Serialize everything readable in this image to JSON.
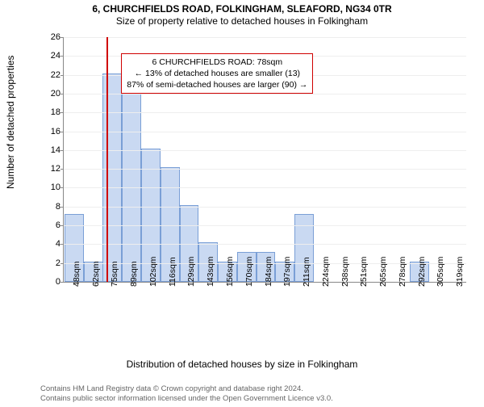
{
  "titles": {
    "line1": "6, CHURCHFIELDS ROAD, FOLKINGHAM, SLEAFORD, NG34 0TR",
    "line2": "Size of property relative to detached houses in Folkingham"
  },
  "axes": {
    "ylabel": "Number of detached properties",
    "xlabel": "Distribution of detached houses by size in Folkingham",
    "ymax": 26,
    "yticks": [
      0,
      2,
      4,
      6,
      8,
      10,
      12,
      14,
      16,
      18,
      20,
      22,
      24,
      26
    ]
  },
  "bars": {
    "categories": [
      "48sqm",
      "62sqm",
      "75sqm",
      "89sqm",
      "102sqm",
      "116sqm",
      "129sqm",
      "143sqm",
      "156sqm",
      "170sqm",
      "184sqm",
      "197sqm",
      "211sqm",
      "224sqm",
      "238sqm",
      "251sqm",
      "265sqm",
      "278sqm",
      "292sqm",
      "305sqm",
      "319sqm"
    ],
    "values": [
      7,
      2,
      22,
      20,
      14,
      12,
      8,
      4,
      2,
      3,
      3,
      2,
      7,
      0,
      0,
      0,
      0,
      0,
      2,
      0,
      0
    ],
    "fill": "#c9d9f2",
    "stroke": "#7a9fd6",
    "border_radius": 0
  },
  "marker": {
    "at_category_index": 2,
    "fractional_offset": 0.25,
    "color": "#d00000"
  },
  "callout": {
    "lines": [
      "6 CHURCHFIELDS ROAD: 78sqm",
      "← 13% of detached houses are smaller (13)",
      "87% of semi-detached houses are larger (90) →"
    ],
    "border": "#d00000",
    "bg": "#ffffff",
    "top_y_value": 24.3,
    "left_category_index": 3,
    "left_fractional": 0.0
  },
  "style": {
    "background": "#ffffff",
    "grid_color": "#eeeeee",
    "axis_color": "#888888",
    "tick_fontsize": 11,
    "label_fontsize": 12,
    "title_fontsize": 12
  },
  "attribution": {
    "line1": "Contains HM Land Registry data © Crown copyright and database right 2024.",
    "line2": "Contains public sector information licensed under the Open Government Licence v3.0."
  }
}
